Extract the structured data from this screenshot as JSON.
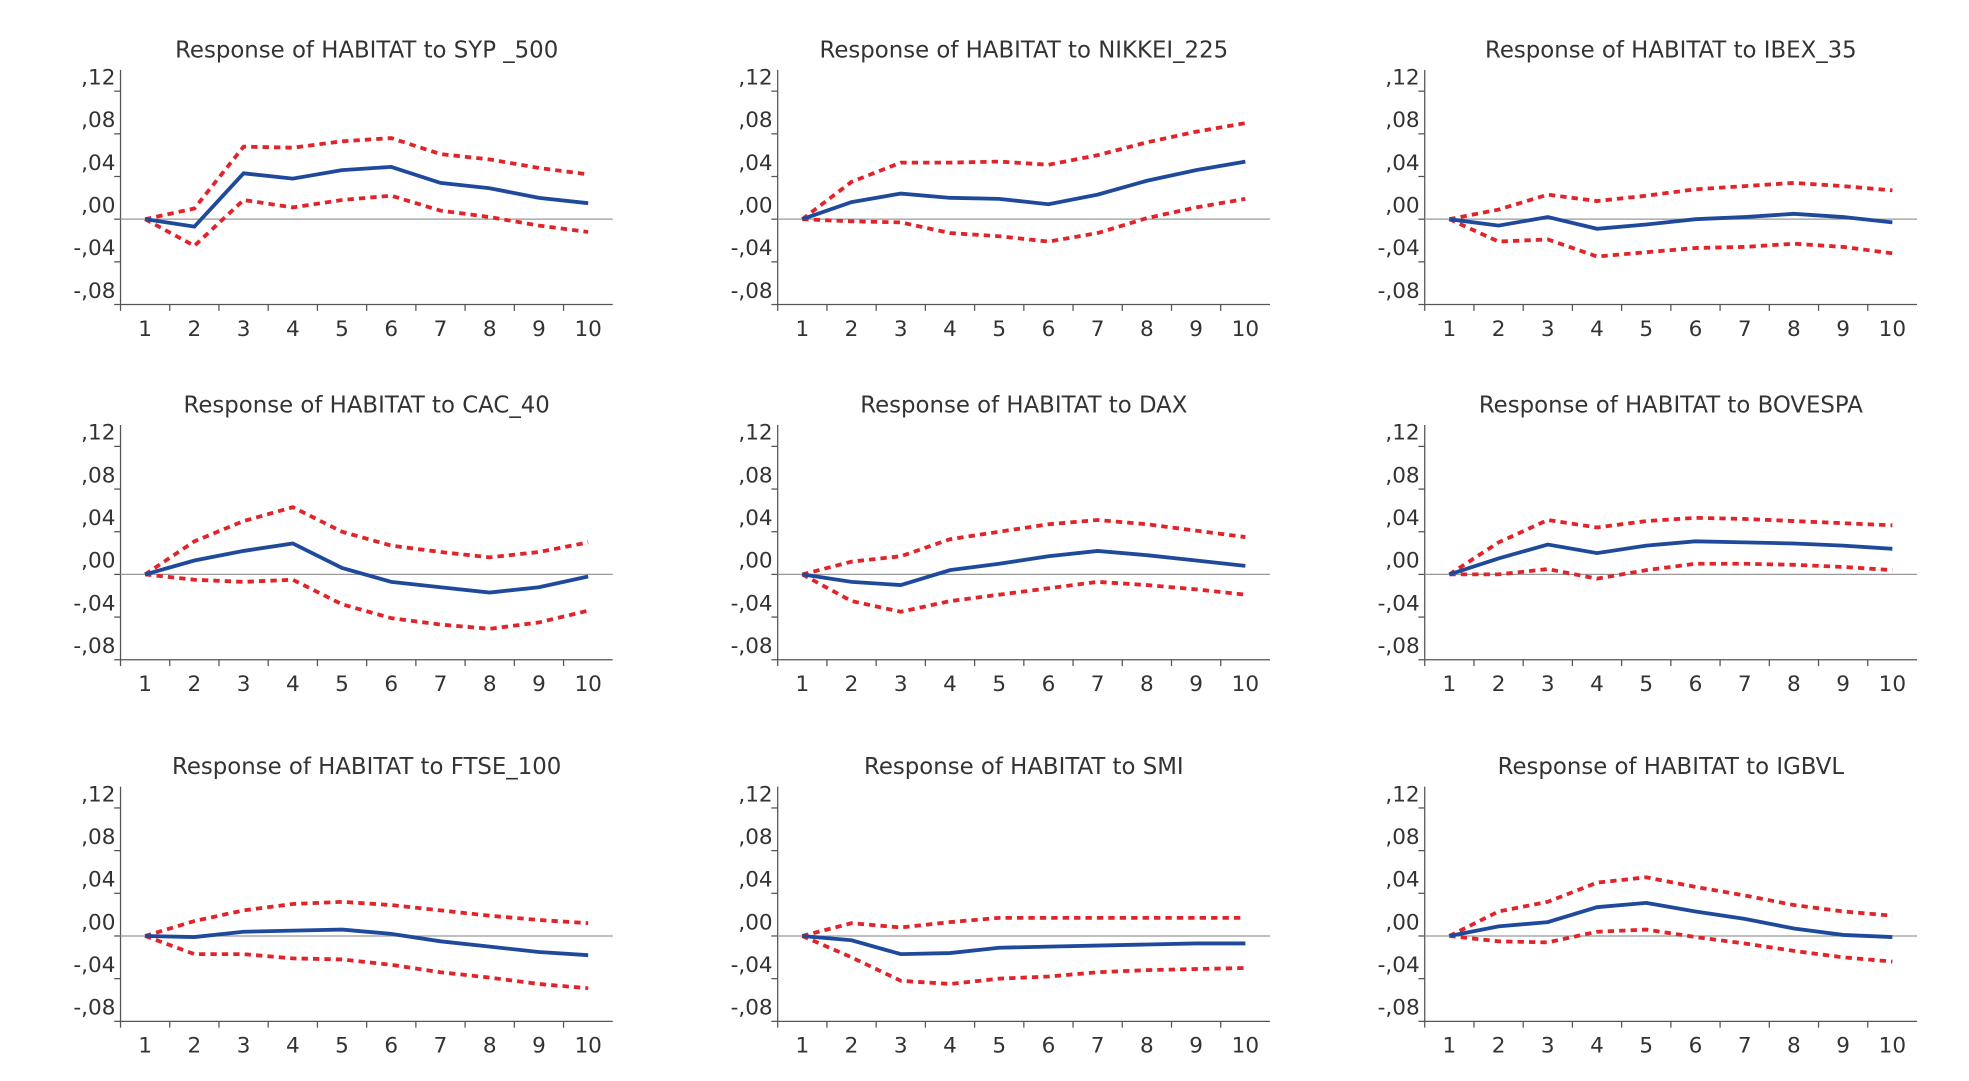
{
  "chart_data": [
    {
      "type": "line",
      "title": "Response of HABITAT to SYP _500",
      "categories": [
        1,
        2,
        3,
        4,
        5,
        6,
        7,
        8,
        9,
        10
      ],
      "ylim": [
        -0.08,
        0.14
      ],
      "yticks": [
        {
          "value": -0.08,
          "label": "-,08"
        },
        {
          "value": -0.04,
          "label": "-,04"
        },
        {
          "value": 0,
          "label": ",00"
        },
        {
          "value": 0.04,
          "label": ",04"
        },
        {
          "value": 0.08,
          "label": ",08"
        },
        {
          "value": 0.12,
          "label": ",12"
        }
      ],
      "zero_line": true,
      "series": [
        {
          "color": "#e0242a",
          "dashed": true,
          "values": [
            0,
            0.01,
            0.068,
            0.067,
            0.073,
            0.076,
            0.061,
            0.056,
            0.048,
            0.042
          ]
        },
        {
          "color": "#e0242a",
          "dashed": true,
          "values": [
            0,
            -0.025,
            0.018,
            0.011,
            0.018,
            0.022,
            0.008,
            0.002,
            -0.006,
            -0.012
          ]
        },
        {
          "color": "#1f4a9c",
          "dashed": false,
          "values": [
            0,
            -0.007,
            0.043,
            0.038,
            0.046,
            0.049,
            0.034,
            0.029,
            0.02,
            0.015
          ]
        }
      ]
    },
    {
      "type": "line",
      "title": "Response of HABITAT to NIKKEI_225",
      "categories": [
        1,
        2,
        3,
        4,
        5,
        6,
        7,
        8,
        9,
        10
      ],
      "ylim": [
        -0.08,
        0.14
      ],
      "yticks": [
        {
          "value": -0.08,
          "label": "-,08"
        },
        {
          "value": -0.04,
          "label": "-,04"
        },
        {
          "value": 0,
          "label": ",00"
        },
        {
          "value": 0.04,
          "label": ",04"
        },
        {
          "value": 0.08,
          "label": ",08"
        },
        {
          "value": 0.12,
          "label": ",12"
        }
      ],
      "zero_line": true,
      "series": [
        {
          "color": "#e0242a",
          "dashed": true,
          "values": [
            0,
            0.035,
            0.053,
            0.053,
            0.054,
            0.051,
            0.06,
            0.072,
            0.082,
            0.09
          ]
        },
        {
          "color": "#e0242a",
          "dashed": true,
          "values": [
            0,
            -0.002,
            -0.003,
            -0.013,
            -0.016,
            -0.021,
            -0.013,
            0.001,
            0.011,
            0.019
          ]
        },
        {
          "color": "#1f4a9c",
          "dashed": false,
          "values": [
            0,
            0.016,
            0.024,
            0.02,
            0.019,
            0.014,
            0.023,
            0.036,
            0.046,
            0.054
          ]
        }
      ]
    },
    {
      "type": "line",
      "title": "Response of HABITAT to IBEX_35",
      "categories": [
        1,
        2,
        3,
        4,
        5,
        6,
        7,
        8,
        9,
        10
      ],
      "ylim": [
        -0.08,
        0.14
      ],
      "yticks": [
        {
          "value": -0.08,
          "label": "-,08"
        },
        {
          "value": -0.04,
          "label": "-,04"
        },
        {
          "value": 0,
          "label": ",00"
        },
        {
          "value": 0.04,
          "label": ",04"
        },
        {
          "value": 0.08,
          "label": ",08"
        },
        {
          "value": 0.12,
          "label": ",12"
        }
      ],
      "zero_line": true,
      "series": [
        {
          "color": "#e0242a",
          "dashed": true,
          "values": [
            0,
            0.009,
            0.023,
            0.017,
            0.022,
            0.028,
            0.031,
            0.034,
            0.031,
            0.027
          ]
        },
        {
          "color": "#e0242a",
          "dashed": true,
          "values": [
            0,
            -0.021,
            -0.019,
            -0.035,
            -0.031,
            -0.027,
            -0.026,
            -0.023,
            -0.026,
            -0.032
          ]
        },
        {
          "color": "#1f4a9c",
          "dashed": false,
          "values": [
            0,
            -0.006,
            0.002,
            -0.009,
            -0.005,
            0.0,
            0.002,
            0.005,
            0.002,
            -0.003
          ]
        }
      ]
    },
    {
      "type": "line",
      "title": "Response of HABITAT to CAC_40",
      "categories": [
        1,
        2,
        3,
        4,
        5,
        6,
        7,
        8,
        9,
        10
      ],
      "ylim": [
        -0.08,
        0.14
      ],
      "yticks": [
        {
          "value": -0.08,
          "label": "-,08"
        },
        {
          "value": -0.04,
          "label": "-,04"
        },
        {
          "value": 0,
          "label": ",00"
        },
        {
          "value": 0.04,
          "label": ",04"
        },
        {
          "value": 0.08,
          "label": ",08"
        },
        {
          "value": 0.12,
          "label": ",12"
        }
      ],
      "zero_line": true,
      "series": [
        {
          "color": "#e0242a",
          "dashed": true,
          "values": [
            0,
            0.031,
            0.05,
            0.063,
            0.04,
            0.027,
            0.021,
            0.016,
            0.021,
            0.03
          ]
        },
        {
          "color": "#e0242a",
          "dashed": true,
          "values": [
            0,
            -0.005,
            -0.007,
            -0.005,
            -0.028,
            -0.041,
            -0.047,
            -0.051,
            -0.045,
            -0.034
          ]
        },
        {
          "color": "#1f4a9c",
          "dashed": false,
          "values": [
            0,
            0.013,
            0.022,
            0.029,
            0.006,
            -0.007,
            -0.012,
            -0.017,
            -0.012,
            -0.002
          ]
        }
      ]
    },
    {
      "type": "line",
      "title": "Response of HABITAT to DAX",
      "categories": [
        1,
        2,
        3,
        4,
        5,
        6,
        7,
        8,
        9,
        10
      ],
      "ylim": [
        -0.08,
        0.14
      ],
      "yticks": [
        {
          "value": -0.08,
          "label": "-,08"
        },
        {
          "value": -0.04,
          "label": "-,04"
        },
        {
          "value": 0,
          "label": ",00"
        },
        {
          "value": 0.04,
          "label": ",04"
        },
        {
          "value": 0.08,
          "label": ",08"
        },
        {
          "value": 0.12,
          "label": ",12"
        }
      ],
      "zero_line": true,
      "series": [
        {
          "color": "#e0242a",
          "dashed": true,
          "values": [
            0,
            0.012,
            0.017,
            0.033,
            0.04,
            0.047,
            0.051,
            0.047,
            0.041,
            0.035
          ]
        },
        {
          "color": "#e0242a",
          "dashed": true,
          "values": [
            0,
            -0.025,
            -0.035,
            -0.025,
            -0.019,
            -0.013,
            -0.007,
            -0.01,
            -0.014,
            -0.019
          ]
        },
        {
          "color": "#1f4a9c",
          "dashed": false,
          "values": [
            0,
            -0.007,
            -0.01,
            0.004,
            0.01,
            0.017,
            0.022,
            0.018,
            0.013,
            0.008
          ]
        }
      ]
    },
    {
      "type": "line",
      "title": "Response of HABITAT to BOVESPA",
      "categories": [
        1,
        2,
        3,
        4,
        5,
        6,
        7,
        8,
        9,
        10
      ],
      "ylim": [
        -0.08,
        0.14
      ],
      "yticks": [
        {
          "value": -0.08,
          "label": "-,08"
        },
        {
          "value": -0.04,
          "label": "-,04"
        },
        {
          "value": 0,
          "label": ",00"
        },
        {
          "value": 0.04,
          "label": ",04"
        },
        {
          "value": 0.08,
          "label": ",08"
        },
        {
          "value": 0.12,
          "label": ",12"
        }
      ],
      "zero_line": true,
      "series": [
        {
          "color": "#e0242a",
          "dashed": true,
          "values": [
            0,
            0.03,
            0.051,
            0.044,
            0.05,
            0.053,
            0.052,
            0.05,
            0.048,
            0.046
          ]
        },
        {
          "color": "#e0242a",
          "dashed": true,
          "values": [
            0,
            0.0,
            0.005,
            -0.004,
            0.004,
            0.01,
            0.01,
            0.009,
            0.007,
            0.004
          ]
        },
        {
          "color": "#1f4a9c",
          "dashed": false,
          "values": [
            0,
            0.015,
            0.028,
            0.02,
            0.027,
            0.031,
            0.03,
            0.029,
            0.027,
            0.024
          ]
        }
      ]
    },
    {
      "type": "line",
      "title": "Response of HABITAT to FTSE_100",
      "categories": [
        1,
        2,
        3,
        4,
        5,
        6,
        7,
        8,
        9,
        10
      ],
      "ylim": [
        -0.08,
        0.14
      ],
      "yticks": [
        {
          "value": -0.08,
          "label": "-,08"
        },
        {
          "value": -0.04,
          "label": "-,04"
        },
        {
          "value": 0,
          "label": ",00"
        },
        {
          "value": 0.04,
          "label": ",04"
        },
        {
          "value": 0.08,
          "label": ",08"
        },
        {
          "value": 0.12,
          "label": ",12"
        }
      ],
      "zero_line": true,
      "series": [
        {
          "color": "#e0242a",
          "dashed": true,
          "values": [
            0,
            0.014,
            0.024,
            0.03,
            0.032,
            0.029,
            0.024,
            0.019,
            0.015,
            0.012
          ]
        },
        {
          "color": "#e0242a",
          "dashed": true,
          "values": [
            0,
            -0.017,
            -0.017,
            -0.021,
            -0.022,
            -0.027,
            -0.034,
            -0.039,
            -0.045,
            -0.049
          ]
        },
        {
          "color": "#1f4a9c",
          "dashed": false,
          "values": [
            0,
            -0.001,
            0.004,
            0.005,
            0.006,
            0.002,
            -0.005,
            -0.01,
            -0.015,
            -0.018
          ]
        }
      ]
    },
    {
      "type": "line",
      "title": "Response of HABITAT to SMI",
      "categories": [
        1,
        2,
        3,
        4,
        5,
        6,
        7,
        8,
        9,
        10
      ],
      "ylim": [
        -0.08,
        0.14
      ],
      "yticks": [
        {
          "value": -0.08,
          "label": "-,08"
        },
        {
          "value": -0.04,
          "label": "-,04"
        },
        {
          "value": 0,
          "label": ",00"
        },
        {
          "value": 0.04,
          "label": ",04"
        },
        {
          "value": 0.08,
          "label": ",08"
        },
        {
          "value": 0.12,
          "label": ",12"
        }
      ],
      "zero_line": true,
      "series": [
        {
          "color": "#e0242a",
          "dashed": true,
          "values": [
            0,
            0.012,
            0.008,
            0.013,
            0.017,
            0.017,
            0.017,
            0.017,
            0.017,
            0.017
          ]
        },
        {
          "color": "#e0242a",
          "dashed": true,
          "values": [
            0,
            -0.02,
            -0.042,
            -0.045,
            -0.04,
            -0.038,
            -0.034,
            -0.032,
            -0.031,
            -0.03
          ]
        },
        {
          "color": "#1f4a9c",
          "dashed": false,
          "values": [
            0,
            -0.004,
            -0.017,
            -0.016,
            -0.011,
            -0.01,
            -0.009,
            -0.008,
            -0.007,
            -0.007
          ]
        }
      ]
    },
    {
      "type": "line",
      "title": "Response of HABITAT to IGBVL",
      "categories": [
        1,
        2,
        3,
        4,
        5,
        6,
        7,
        8,
        9,
        10
      ],
      "ylim": [
        -0.08,
        0.14
      ],
      "yticks": [
        {
          "value": -0.08,
          "label": "-,08"
        },
        {
          "value": -0.04,
          "label": "-,04"
        },
        {
          "value": 0,
          "label": ",00"
        },
        {
          "value": 0.04,
          "label": ",04"
        },
        {
          "value": 0.08,
          "label": ",08"
        },
        {
          "value": 0.12,
          "label": ",12"
        }
      ],
      "zero_line": true,
      "series": [
        {
          "color": "#e0242a",
          "dashed": true,
          "values": [
            0,
            0.023,
            0.032,
            0.05,
            0.055,
            0.046,
            0.038,
            0.029,
            0.023,
            0.019
          ]
        },
        {
          "color": "#e0242a",
          "dashed": true,
          "values": [
            0,
            -0.005,
            -0.006,
            0.004,
            0.006,
            -0.001,
            -0.007,
            -0.014,
            -0.02,
            -0.024
          ]
        },
        {
          "color": "#1f4a9c",
          "dashed": false,
          "values": [
            0,
            0.009,
            0.013,
            0.027,
            0.031,
            0.023,
            0.016,
            0.007,
            0.001,
            -0.001
          ]
        }
      ]
    }
  ]
}
